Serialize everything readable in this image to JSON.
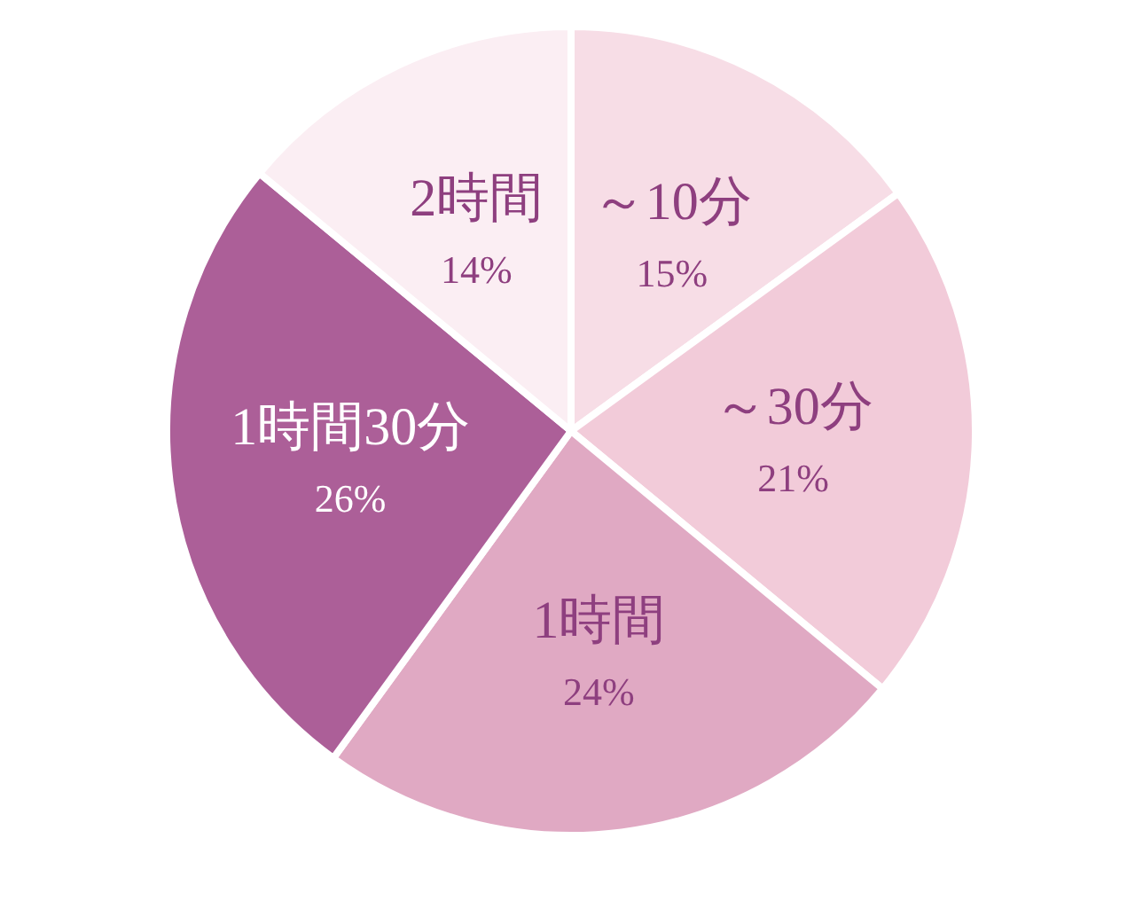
{
  "chart_data": {
    "type": "pie",
    "categories": [
      "～10分",
      "～30分",
      "1時間",
      "1時間30分",
      "2時間"
    ],
    "values": [
      15,
      21,
      24,
      26,
      14
    ],
    "value_labels": [
      "15%",
      "21%",
      "24%",
      "26%",
      "14%"
    ],
    "colors": [
      "#f7dde6",
      "#f2cbd9",
      "#e0a9c3",
      "#ac5f98",
      "#fbeef3"
    ]
  }
}
